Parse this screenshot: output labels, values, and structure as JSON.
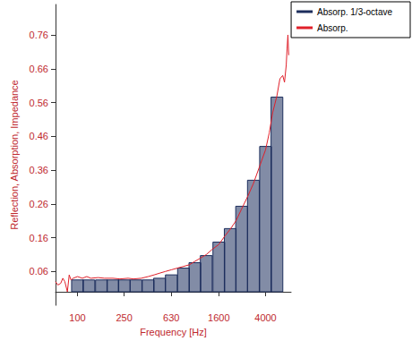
{
  "chart_data": {
    "type": "bar_line",
    "x_label": "Frequency [Hz]",
    "y_label": "Reflection, Absorption, Impedance",
    "log": "x",
    "grid": false,
    "legend": "top-right",
    "xlim": [
      65,
      6600
    ],
    "xticks": [
      100,
      250,
      630,
      1600,
      4000
    ],
    "ylim": [
      -0.04,
      0.85
    ],
    "yticks": [
      0.06,
      0.16,
      0.26,
      0.36,
      0.46,
      0.56,
      0.66,
      0.76
    ],
    "series": [
      {
        "name": "Absorp. 1/3-octave",
        "type": "bar",
        "color": "#1c2d5c",
        "x": [
          100,
          125,
          160,
          200,
          250,
          315,
          400,
          500,
          630,
          800,
          1000,
          1250,
          1600,
          2000,
          2500,
          3150,
          4000,
          5000
        ],
        "values": [
          0.035,
          0.035,
          0.035,
          0.035,
          0.035,
          0.035,
          0.035,
          0.04,
          0.05,
          0.07,
          0.086,
          0.107,
          0.147,
          0.187,
          0.253,
          0.33,
          0.43,
          0.576
        ]
      },
      {
        "name": "Absorp.",
        "type": "line",
        "color": "#e0202a",
        "x": [
          65,
          68,
          72,
          75,
          78,
          82,
          85,
          88,
          92,
          100,
          110,
          120,
          130,
          150,
          170,
          200,
          230,
          270,
          300,
          350,
          400,
          450,
          500,
          560,
          630,
          710,
          800,
          900,
          1000,
          1120,
          1250,
          1400,
          1600,
          1800,
          2000,
          2240,
          2500,
          2800,
          3150,
          3550,
          4000,
          4300,
          4600,
          5000,
          5300,
          5600,
          5800,
          6000,
          6100,
          6200,
          6300
        ],
        "values": [
          0.03,
          0.02,
          0.025,
          0.04,
          0.03,
          0.0,
          0.05,
          0.035,
          0.04,
          0.045,
          0.04,
          0.045,
          0.04,
          0.042,
          0.04,
          0.04,
          0.038,
          0.04,
          0.038,
          0.04,
          0.045,
          0.05,
          0.055,
          0.06,
          0.065,
          0.07,
          0.075,
          0.08,
          0.09,
          0.1,
          0.11,
          0.125,
          0.14,
          0.165,
          0.185,
          0.21,
          0.245,
          0.28,
          0.32,
          0.37,
          0.42,
          0.47,
          0.53,
          0.58,
          0.63,
          0.64,
          0.62,
          0.67,
          0.72,
          0.76,
          0.7
        ]
      }
    ]
  }
}
